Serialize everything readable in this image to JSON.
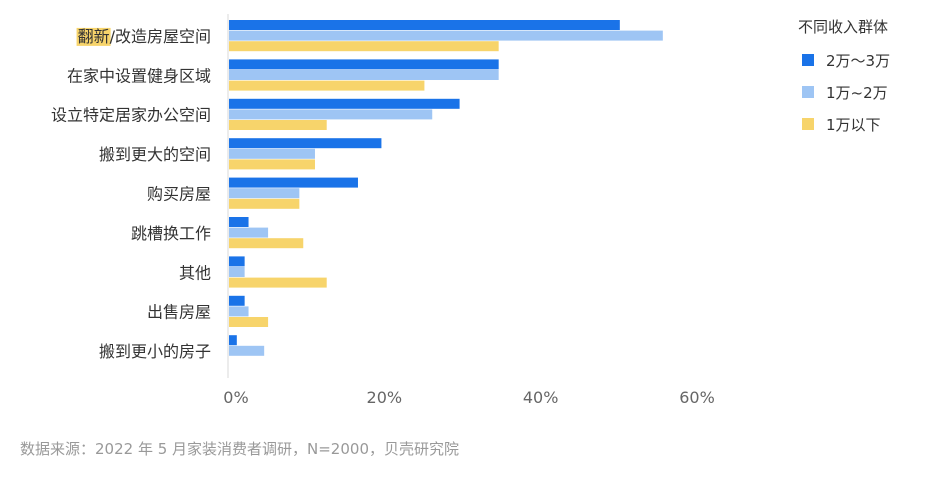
{
  "chart_data": {
    "type": "bar",
    "orientation": "horizontal",
    "categories": [
      "翻新/改造房屋空间",
      "在家中设置健身区域",
      "设立特定居家办公空间",
      "搬到更大的空间",
      "购买房屋",
      "跳槽换工作",
      "其他",
      "出售房屋",
      "搬到更小的房子"
    ],
    "highlight": {
      "category_index": 0,
      "text": "翻新",
      "rest": "/改造房屋空间",
      "color": "#F7D46B"
    },
    "series": [
      {
        "name": "2万～3万",
        "color": "#1A73E8",
        "values": [
          50,
          34.5,
          29.5,
          19.5,
          16.5,
          2.5,
          2,
          2,
          1
        ]
      },
      {
        "name": "1万~2万",
        "color": "#9EC5F4",
        "values": [
          55.5,
          34.5,
          26,
          11,
          9,
          5,
          2,
          2.5,
          4.5
        ]
      },
      {
        "name": "1万以下",
        "color": "#F7D46B",
        "values": [
          34.5,
          25,
          12.5,
          11,
          9,
          9.5,
          12.5,
          5,
          null
        ]
      }
    ],
    "xlim": [
      0,
      60
    ],
    "xticks": [
      "0%",
      "20%",
      "40%",
      "60%"
    ],
    "legend_title": "不同收入群体",
    "legend_position": "top-right",
    "grid": false
  },
  "source_note": "数据来源：2022 年 5 月家装消费者调研，N=2000，贝壳研究院"
}
